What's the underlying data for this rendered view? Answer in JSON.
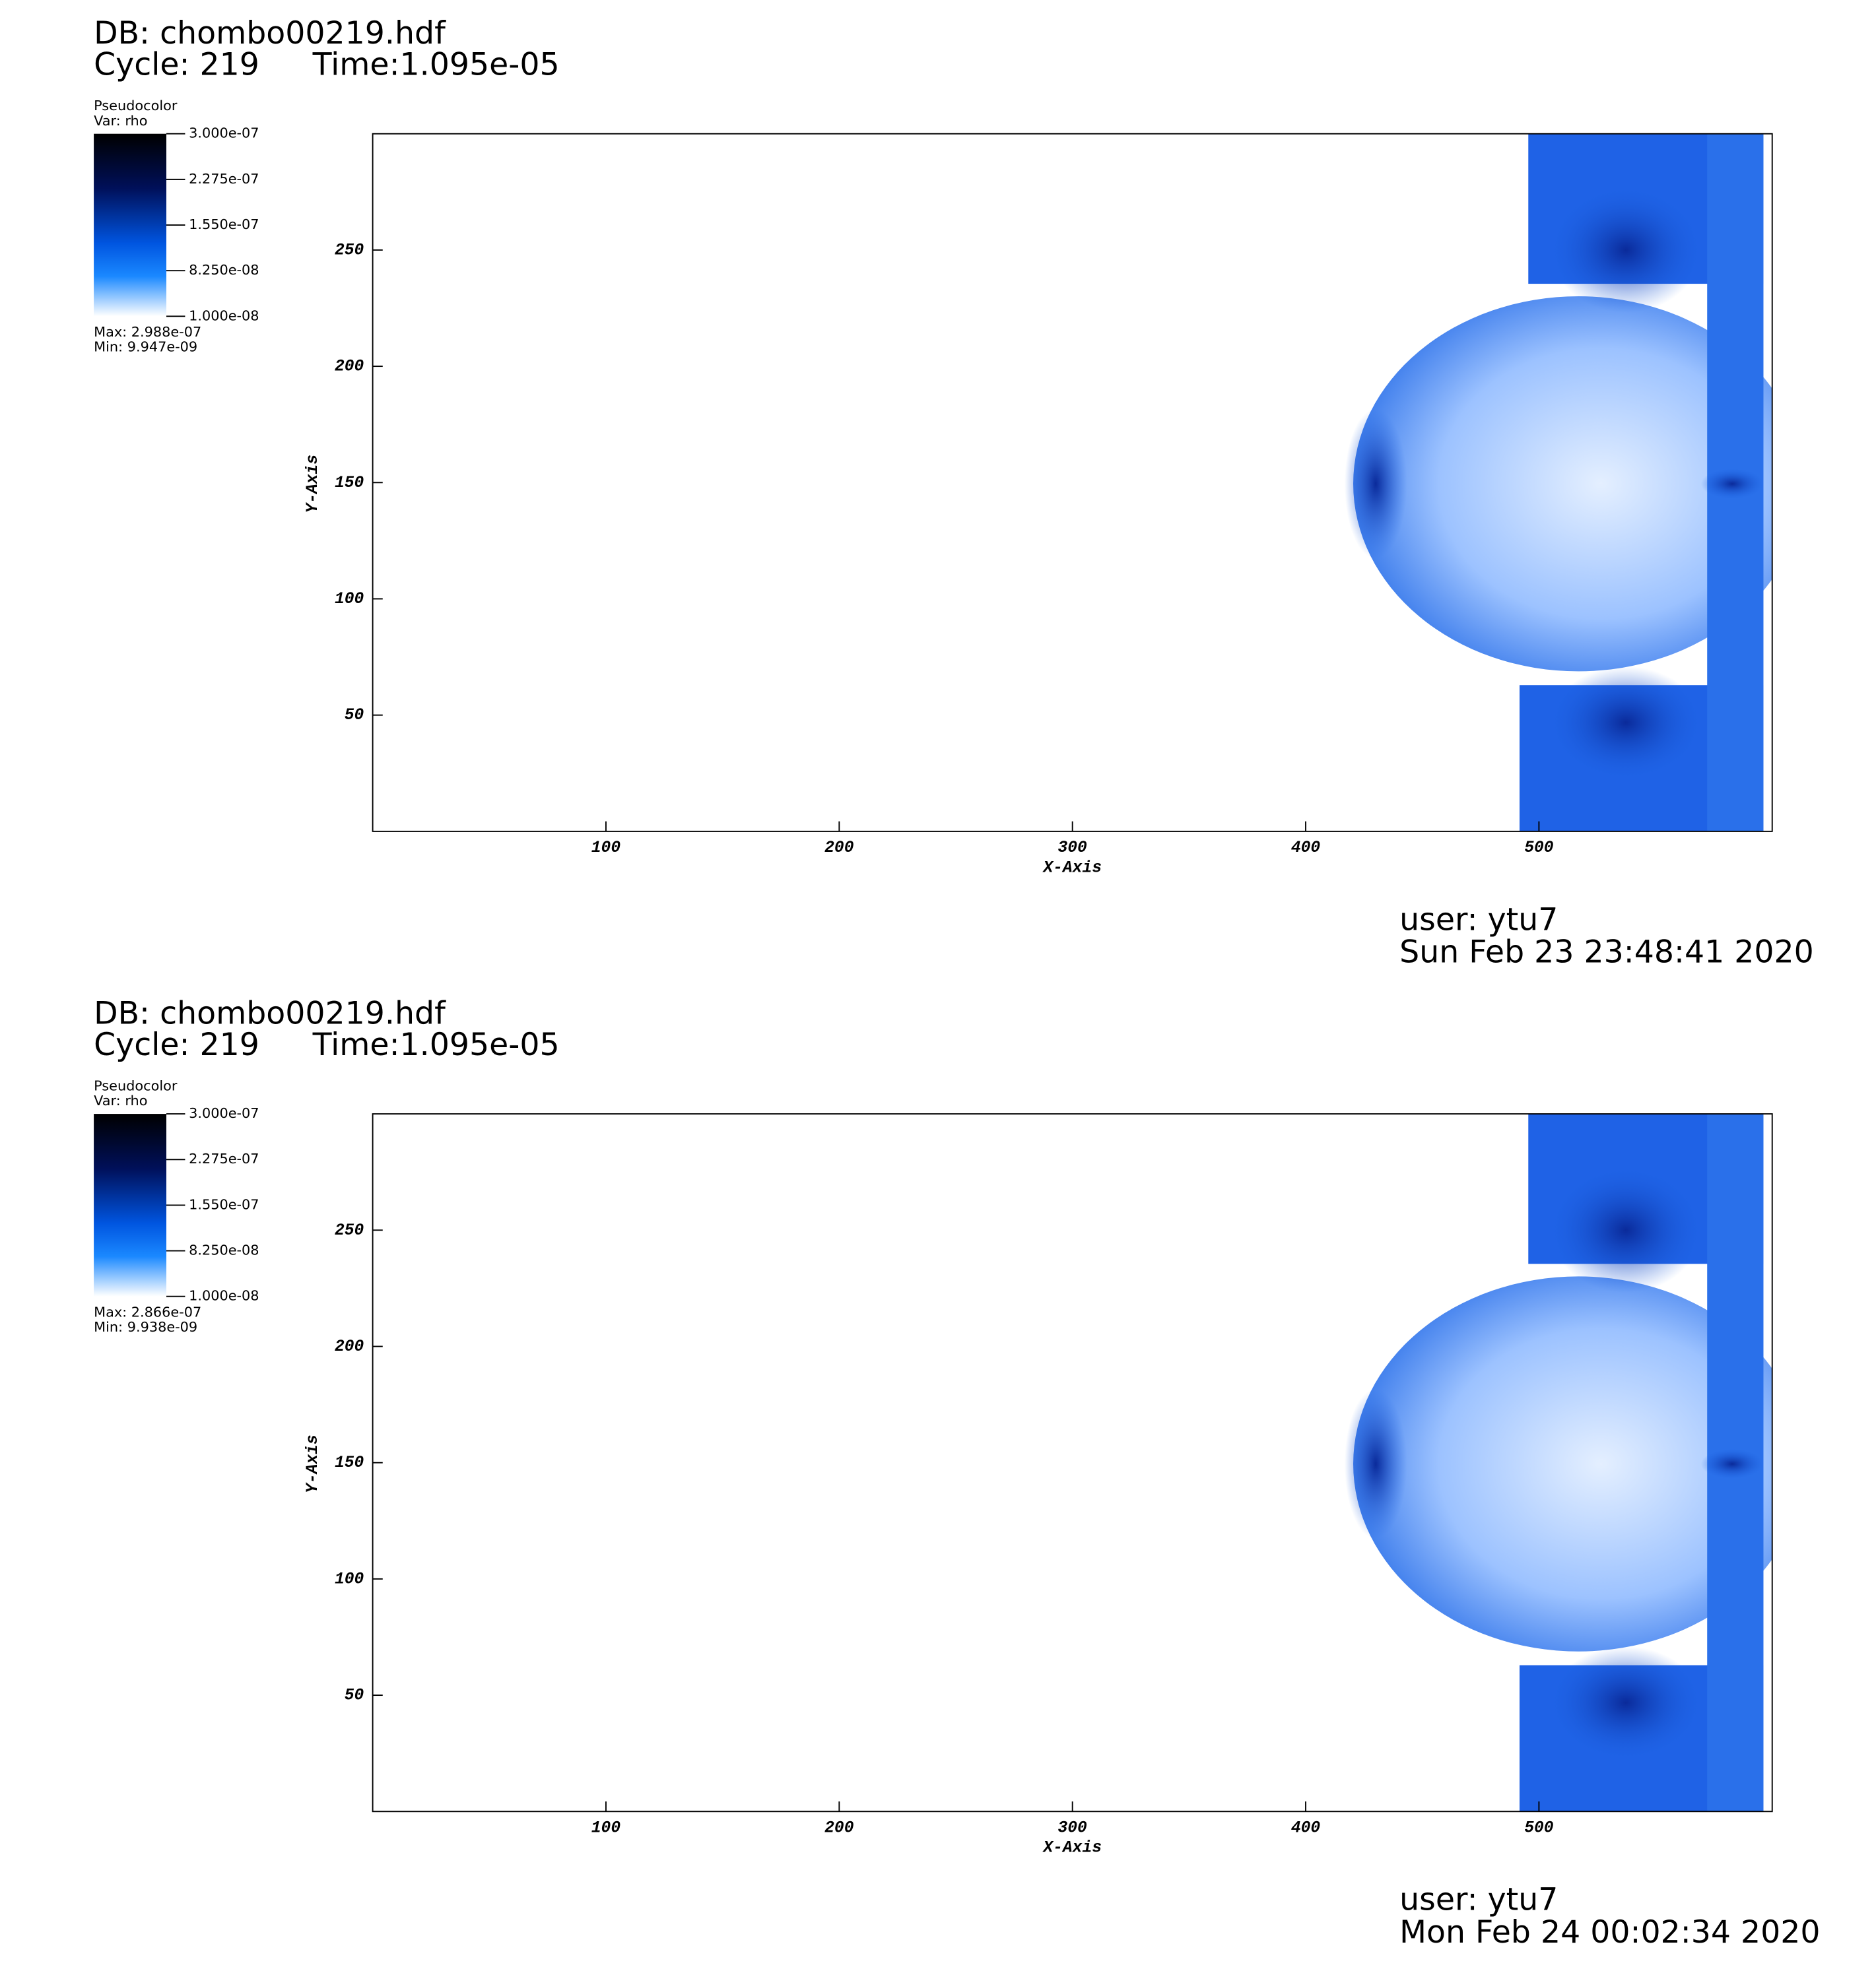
{
  "chart_data": [
    {
      "type": "pseudocolor",
      "db": "DB: chombo00219.hdf",
      "cycle": "Cycle: 219",
      "time": "Time:1.095e-05",
      "legend_title": "Pseudocolor",
      "legend_var": "Var: rho",
      "colorbar": {
        "lim": [
          1e-08,
          3e-07
        ],
        "ticks": [
          {
            "value": 3e-07,
            "label": "3.000e-07"
          },
          {
            "value": 2.275e-07,
            "label": "2.275e-07"
          },
          {
            "value": 1.55e-07,
            "label": "1.550e-07"
          },
          {
            "value": 8.25e-08,
            "label": "8.250e-08"
          },
          {
            "value": 1e-08,
            "label": "1.000e-08"
          }
        ]
      },
      "max_text": "Max:  2.988e-07",
      "min_text": "Min:  9.947e-09",
      "xlabel": "X-Axis",
      "ylabel": "Y-Axis",
      "xlim": [
        0,
        600
      ],
      "ylim": [
        0,
        300
      ],
      "xticks": [
        100,
        200,
        300,
        400,
        500
      ],
      "yticks": [
        50,
        100,
        150,
        200,
        250
      ],
      "user": "user: ytu7",
      "date": "Sun Feb 23 23:48:41 2020"
    },
    {
      "type": "pseudocolor",
      "db": "DB: chombo00219.hdf",
      "cycle": "Cycle: 219",
      "time": "Time:1.095e-05",
      "legend_title": "Pseudocolor",
      "legend_var": "Var: rho",
      "colorbar": {
        "lim": [
          1e-08,
          3e-07
        ],
        "ticks": [
          {
            "value": 3e-07,
            "label": "3.000e-07"
          },
          {
            "value": 2.275e-07,
            "label": "2.275e-07"
          },
          {
            "value": 1.55e-07,
            "label": "1.550e-07"
          },
          {
            "value": 8.25e-08,
            "label": "8.250e-08"
          },
          {
            "value": 1e-08,
            "label": "1.000e-08"
          }
        ]
      },
      "max_text": "Max:  2.866e-07",
      "min_text": "Min:  9.938e-09",
      "xlabel": "X-Axis",
      "ylabel": "Y-Axis",
      "xlim": [
        0,
        600
      ],
      "ylim": [
        0,
        300
      ],
      "xticks": [
        100,
        200,
        300,
        400,
        500
      ],
      "yticks": [
        50,
        100,
        150,
        200,
        250
      ],
      "user": "user: ytu7",
      "date": "Mon Feb 24 00:02:34 2020"
    }
  ]
}
